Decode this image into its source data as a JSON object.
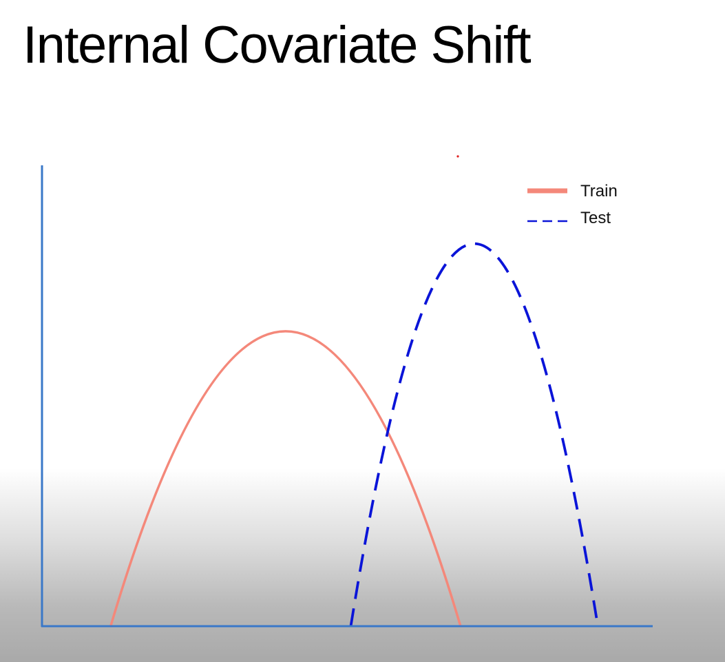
{
  "slide": {
    "title": "Internal Covariate Shift"
  },
  "chart_data": {
    "type": "line",
    "title": "",
    "xlabel": "",
    "ylabel": "",
    "grid": false,
    "legend_position": "top-right",
    "series": [
      {
        "name": "Train",
        "style": "solid",
        "color": "#f4887a",
        "start": 1.0,
        "end": 6.1,
        "peak": 6.4
      },
      {
        "name": "Test",
        "style": "dashed",
        "color": "#0a14d8",
        "start": 4.5,
        "end": 8.1,
        "peak": 8.3
      }
    ],
    "xlim": [
      0,
      8.9
    ],
    "ylim": [
      0,
      10
    ],
    "axis_color": "#3a78c8"
  }
}
